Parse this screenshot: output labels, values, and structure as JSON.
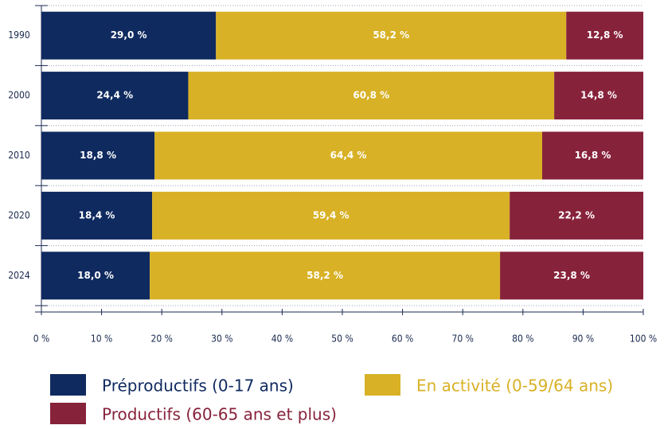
{
  "chart_data": {
    "type": "stacked_barh",
    "categories": [
      "1990",
      "2000",
      "2010",
      "2020",
      "2024"
    ],
    "series": [
      {
        "name": "Préproductifs (0-17 ans)",
        "color": "#0f2a5f",
        "values": [
          29.0,
          24.4,
          18.8,
          18.4,
          18.0
        ],
        "value_labels": [
          "29,0 %",
          "24,4 %",
          "18,8 %",
          "18,4 %",
          "18,0 %"
        ]
      },
      {
        "name": "En activité (0-59/64 ans)",
        "color": "#d8b126",
        "values": [
          58.2,
          60.8,
          64.4,
          59.4,
          58.2
        ],
        "value_labels": [
          "58,2 %",
          "60,8 %",
          "64,4 %",
          "59,4 %",
          "58,2 %"
        ]
      },
      {
        "name": "Productifs (60-65 ans et plus)",
        "color": "#87223b",
        "values": [
          12.8,
          14.8,
          16.8,
          22.2,
          23.8
        ],
        "value_labels": [
          "12,8 %",
          "14,8 %",
          "16,8 %",
          "22,2 %",
          "23,8 %"
        ]
      }
    ],
    "xlim": [
      0,
      100
    ],
    "xticks": [
      {
        "value": 0,
        "label": "0 %"
      },
      {
        "value": 10,
        "label": "10 %"
      },
      {
        "value": 20,
        "label": "20 %"
      },
      {
        "value": 30,
        "label": "30 %"
      },
      {
        "value": 40,
        "label": "40 %"
      },
      {
        "value": 50,
        "label": "50 %"
      },
      {
        "value": 60,
        "label": "60 %"
      },
      {
        "value": 70,
        "label": "70 %"
      },
      {
        "value": 80,
        "label": "80 %"
      },
      {
        "value": 90,
        "label": "90 %"
      },
      {
        "value": 100,
        "label": "100 %"
      }
    ]
  }
}
